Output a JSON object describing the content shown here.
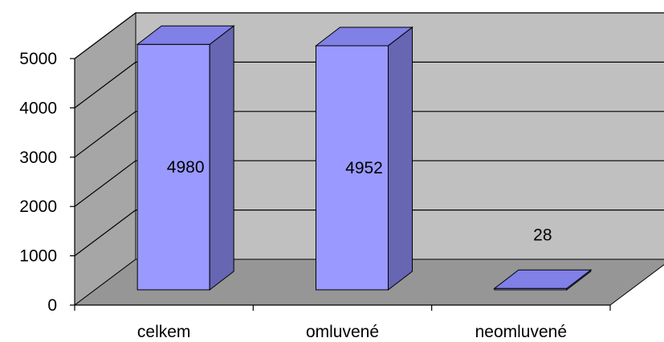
{
  "chart_data": {
    "type": "bar",
    "style": "3d-column",
    "categories": [
      "celkem",
      "omluvené",
      "neomluvené"
    ],
    "values": [
      4980,
      4952,
      28
    ],
    "data_labels": [
      "4980",
      "4952",
      "28"
    ],
    "ylim": [
      0,
      5000
    ],
    "yticks": [
      "0",
      "1000",
      "2000",
      "3000",
      "4000",
      "5000"
    ],
    "grid": true,
    "legend": "none",
    "colors": {
      "bar_front": "#9999ff",
      "bar_side": "#6666b3",
      "bar_top": "#8080e6",
      "back_wall": "#c0c0c0",
      "side_wall": "#a6a6a6",
      "floor": "#969696",
      "grid": "#000000"
    }
  }
}
